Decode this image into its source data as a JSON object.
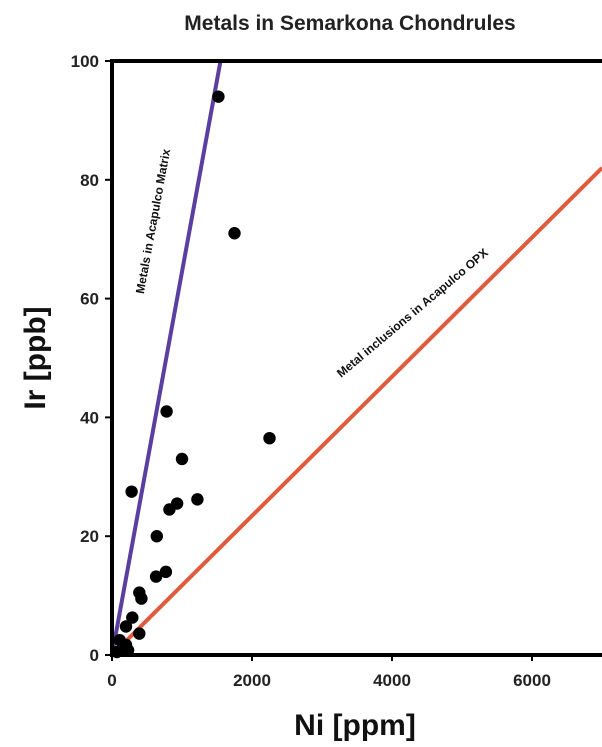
{
  "chart_data": {
    "type": "scatter",
    "title": "Metals in Semarkona Chondrules",
    "xlabel": "Ni [ppm]",
    "ylabel": "Ir [ppb]",
    "xlim": [
      0,
      7000
    ],
    "ylim": [
      0,
      100
    ],
    "xticks": [
      "0",
      "2000",
      "4000",
      "6000"
    ],
    "yticks": [
      "0",
      "20",
      "40",
      "60",
      "80",
      "100"
    ],
    "grid": false,
    "points": [
      {
        "x": 1520,
        "y": 94
      },
      {
        "x": 1750,
        "y": 71
      },
      {
        "x": 780,
        "y": 41
      },
      {
        "x": 2250,
        "y": 36.5
      },
      {
        "x": 1000,
        "y": 33
      },
      {
        "x": 280,
        "y": 27.5
      },
      {
        "x": 1220,
        "y": 26.2
      },
      {
        "x": 930,
        "y": 25.5
      },
      {
        "x": 820,
        "y": 24.5
      },
      {
        "x": 640,
        "y": 20
      },
      {
        "x": 770,
        "y": 14
      },
      {
        "x": 630,
        "y": 13.2
      },
      {
        "x": 390,
        "y": 10.5
      },
      {
        "x": 420,
        "y": 9.5
      },
      {
        "x": 290,
        "y": 6.3
      },
      {
        "x": 200,
        "y": 4.8
      },
      {
        "x": 390,
        "y": 3.6
      },
      {
        "x": 110,
        "y": 2.5
      },
      {
        "x": 200,
        "y": 1.7
      },
      {
        "x": 230,
        "y": 0.8
      },
      {
        "x": 70,
        "y": 0.5
      }
    ],
    "lines": [
      {
        "name": "Metals in Acapulco Matrix",
        "color": "#5b3fa0",
        "x": [
          0,
          1550
        ],
        "y": [
          0,
          100
        ]
      },
      {
        "name": "Metal inclusions in Acapulco OPX",
        "color": "#e05a3c",
        "x": [
          0,
          7000
        ],
        "y": [
          0,
          82
        ]
      }
    ],
    "point_color": "#000000"
  }
}
